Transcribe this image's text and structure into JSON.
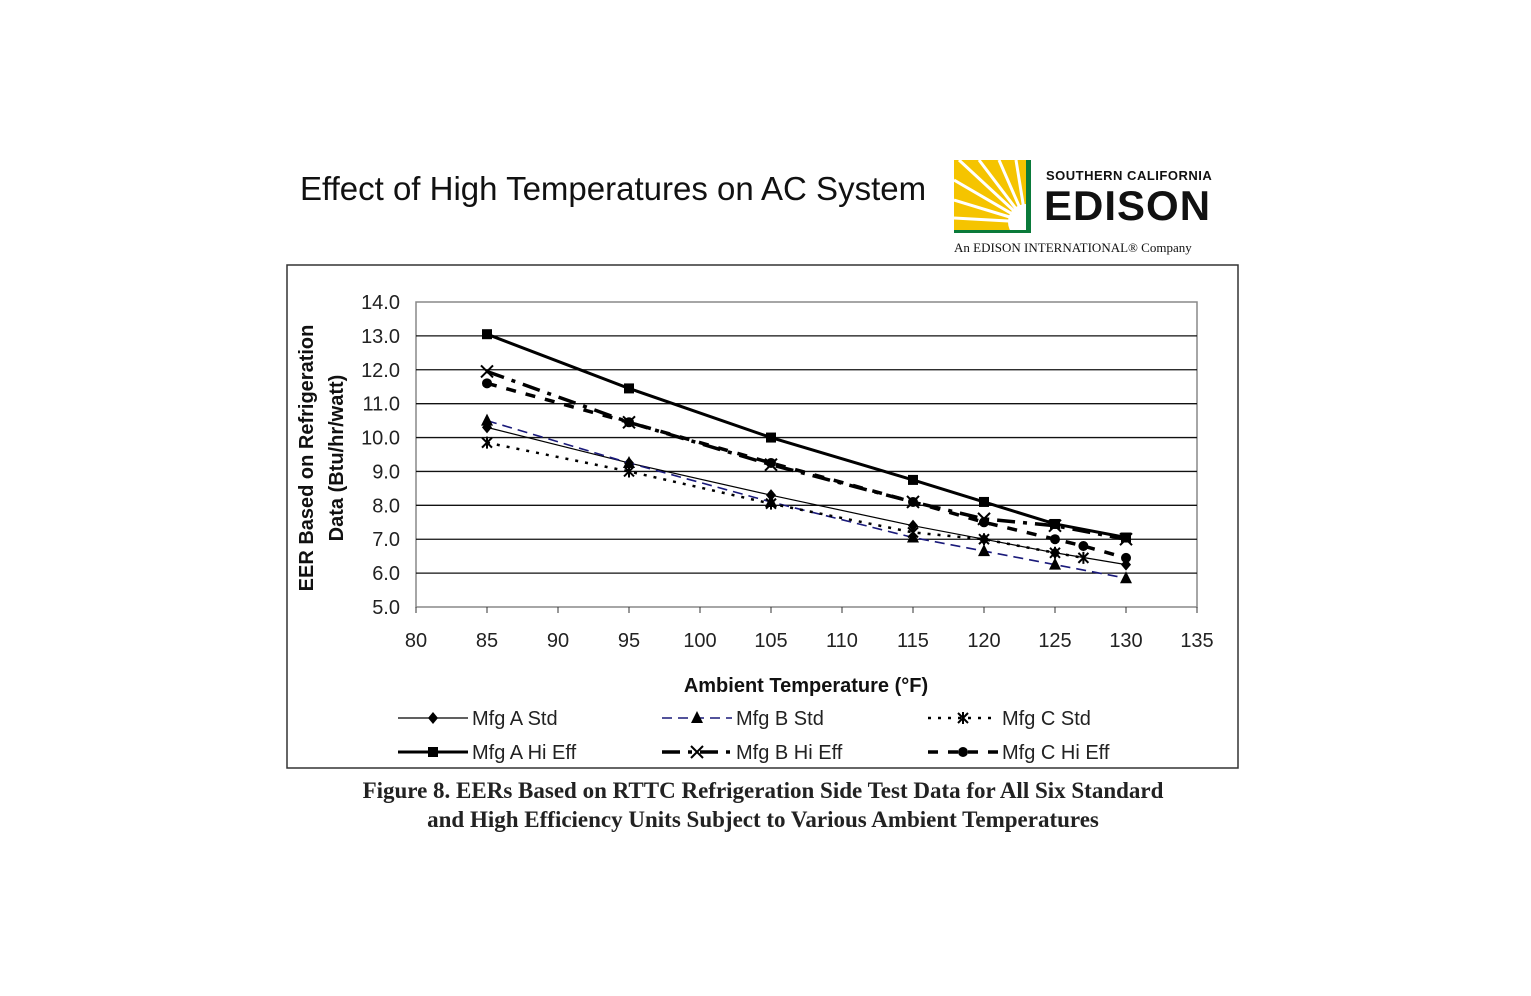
{
  "slide_title": "Effect of High Temperatures on AC System",
  "logo": {
    "line1": "SOUTHERN CALIFORNIA",
    "line2": "EDISON",
    "line3": "An EDISON INTERNATIONAL® Company",
    "colors": {
      "sun": "#f5c400",
      "frame": "#0a7a3a"
    }
  },
  "caption": [
    "Figure 8. EERs Based on RTTC Refrigeration Side Test Data for All Six Standard",
    "and High Efficiency Units Subject to Various Ambient Temperatures"
  ],
  "chart_data": {
    "type": "line",
    "xlabel": "Ambient Temperature (°F)",
    "ylabel": [
      "EER Based on Refrigeration",
      "Data  (Btu/hr/watt)"
    ],
    "xlim": [
      80,
      135
    ],
    "ylim": [
      5.0,
      14.0
    ],
    "xticks": [
      "80",
      "85",
      "90",
      "95",
      "100",
      "105",
      "110",
      "115",
      "120",
      "125",
      "130",
      "135"
    ],
    "yticks": [
      "5.0",
      "6.0",
      "7.0",
      "8.0",
      "9.0",
      "10.0",
      "11.0",
      "12.0",
      "13.0",
      "14.0"
    ],
    "grid": "horizontal",
    "legend_position": "bottom",
    "series": [
      {
        "name": "Mfg A Std",
        "marker": "diamond",
        "style": "thin-solid",
        "color": "#000000",
        "x": [
          85,
          95,
          105,
          115,
          120,
          125,
          130
        ],
        "y": [
          10.3,
          9.25,
          8.3,
          7.4,
          7.0,
          6.6,
          6.25
        ]
      },
      {
        "name": "Mfg B Std",
        "marker": "triangle",
        "style": "dashed",
        "color": "#1a1a7a",
        "x": [
          85,
          95,
          105,
          115,
          120,
          125,
          130
        ],
        "y": [
          10.5,
          9.25,
          8.1,
          7.05,
          6.65,
          6.25,
          5.85
        ]
      },
      {
        "name": "Mfg C Std",
        "marker": "asterisk",
        "style": "dotted",
        "color": "#000000",
        "x": [
          85,
          95,
          105,
          115,
          120,
          125,
          127
        ],
        "y": [
          9.85,
          9.0,
          8.05,
          7.2,
          7.0,
          6.6,
          6.45
        ]
      },
      {
        "name": "Mfg A Hi Eff",
        "marker": "square",
        "style": "thick-solid",
        "color": "#000000",
        "x": [
          85,
          95,
          105,
          115,
          120,
          125,
          130
        ],
        "y": [
          13.05,
          11.45,
          10.0,
          8.75,
          8.1,
          7.45,
          7.05
        ]
      },
      {
        "name": "Mfg B Hi Eff",
        "marker": "x",
        "style": "dash-dot",
        "color": "#000000",
        "x": [
          85,
          95,
          105,
          115,
          120,
          125,
          130
        ],
        "y": [
          11.95,
          10.45,
          9.2,
          8.1,
          7.6,
          7.4,
          7.0
        ]
      },
      {
        "name": "Mfg C Hi Eff",
        "marker": "circle",
        "style": "thick-dashed",
        "color": "#000000",
        "x": [
          85,
          95,
          105,
          115,
          120,
          125,
          127,
          130
        ],
        "y": [
          11.6,
          10.45,
          9.25,
          8.1,
          7.5,
          7.0,
          6.8,
          6.45
        ]
      }
    ]
  }
}
